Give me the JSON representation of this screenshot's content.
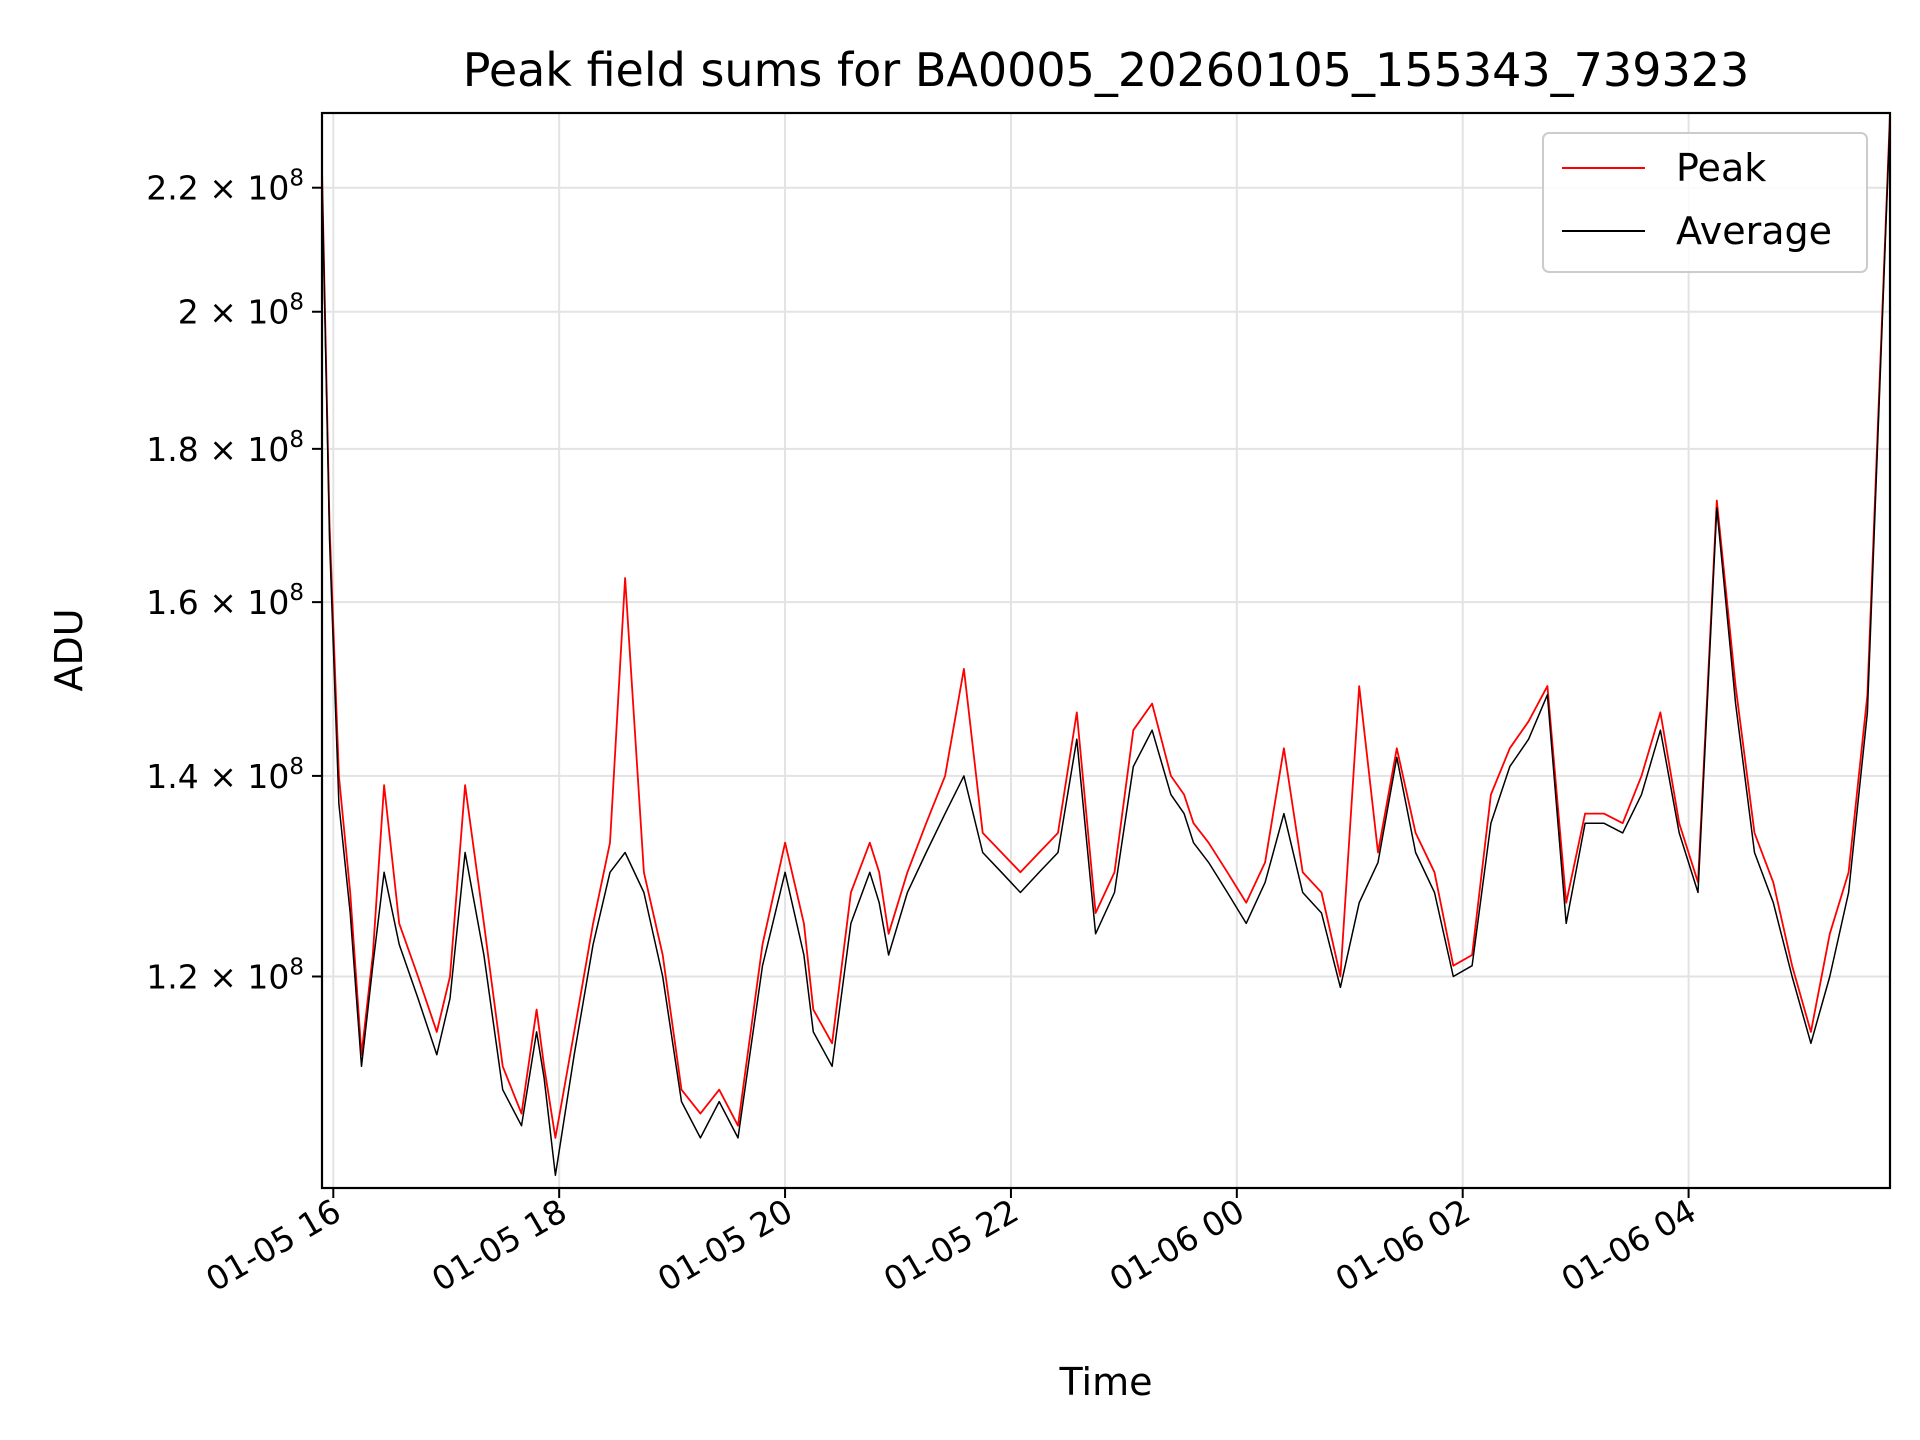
{
  "chart_data": {
    "type": "line",
    "title": "Peak field sums for BA0005_20260105_155343_739323",
    "xlabel": "Time",
    "ylabel": "ADU",
    "y_scale": "log",
    "xlim": [
      "2026-01-05 15:54",
      "2026-01-06 05:47"
    ],
    "ylim": [
      102000000.0,
      233000000.0
    ],
    "grid": true,
    "legend_position": "top-right",
    "x_ticks": [
      "01-05 16",
      "01-05 18",
      "01-05 20",
      "01-05 22",
      "01-06 00",
      "01-06 02",
      "01-06 04"
    ],
    "y_ticks": [
      {
        "value": 120000000.0,
        "mantissa": "1.2",
        "exponent": "8"
      },
      {
        "value": 140000000.0,
        "mantissa": "1.4",
        "exponent": "8"
      },
      {
        "value": 160000000.0,
        "mantissa": "1.6",
        "exponent": "8"
      },
      {
        "value": 180000000.0,
        "mantissa": "1.8",
        "exponent": "8"
      },
      {
        "value": 200000000.0,
        "mantissa": "2",
        "exponent": "8"
      },
      {
        "value": 220000000.0,
        "mantissa": "2.2",
        "exponent": "8"
      }
    ],
    "series": [
      {
        "name": "Peak",
        "color": "#ff0000",
        "x": [
          "2026-01-05 15:54",
          "2026-01-05 15:58",
          "2026-01-05 16:03",
          "2026-01-05 16:09",
          "2026-01-05 16:15",
          "2026-01-05 16:21",
          "2026-01-05 16:27",
          "2026-01-05 16:35",
          "2026-01-05 16:45",
          "2026-01-05 16:55",
          "2026-01-05 17:02",
          "2026-01-05 17:10",
          "2026-01-05 17:20",
          "2026-01-05 17:30",
          "2026-01-05 17:40",
          "2026-01-05 17:48",
          "2026-01-05 17:52",
          "2026-01-05 17:58",
          "2026-01-05 18:08",
          "2026-01-05 18:18",
          "2026-01-05 18:27",
          "2026-01-05 18:35",
          "2026-01-05 18:45",
          "2026-01-05 18:55",
          "2026-01-05 19:05",
          "2026-01-05 19:15",
          "2026-01-05 19:25",
          "2026-01-05 19:35",
          "2026-01-05 19:48",
          "2026-01-05 20:00",
          "2026-01-05 20:10",
          "2026-01-05 20:15",
          "2026-01-05 20:25",
          "2026-01-05 20:35",
          "2026-01-05 20:45",
          "2026-01-05 20:50",
          "2026-01-05 20:55",
          "2026-01-05 21:05",
          "2026-01-05 21:15",
          "2026-01-05 21:25",
          "2026-01-05 21:35",
          "2026-01-05 21:45",
          "2026-01-05 21:55",
          "2026-01-05 22:05",
          "2026-01-05 22:15",
          "2026-01-05 22:25",
          "2026-01-05 22:35",
          "2026-01-05 22:45",
          "2026-01-05 22:55",
          "2026-01-05 23:05",
          "2026-01-05 23:15",
          "2026-01-05 23:25",
          "2026-01-05 23:32",
          "2026-01-05 23:37",
          "2026-01-05 23:45",
          "2026-01-05 23:55",
          "2026-01-06 00:05",
          "2026-01-06 00:15",
          "2026-01-06 00:25",
          "2026-01-06 00:35",
          "2026-01-06 00:45",
          "2026-01-06 00:55",
          "2026-01-06 01:05",
          "2026-01-06 01:15",
          "2026-01-06 01:25",
          "2026-01-06 01:35",
          "2026-01-06 01:45",
          "2026-01-06 01:55",
          "2026-01-06 02:05",
          "2026-01-06 02:15",
          "2026-01-06 02:25",
          "2026-01-06 02:35",
          "2026-01-06 02:45",
          "2026-01-06 02:55",
          "2026-01-06 03:05",
          "2026-01-06 03:15",
          "2026-01-06 03:25",
          "2026-01-06 03:35",
          "2026-01-06 03:45",
          "2026-01-06 03:55",
          "2026-01-06 04:05",
          "2026-01-06 04:15",
          "2026-01-06 04:25",
          "2026-01-06 04:35",
          "2026-01-06 04:45",
          "2026-01-06 04:55",
          "2026-01-06 05:05",
          "2026-01-06 05:15",
          "2026-01-06 05:25",
          "2026-01-06 05:35",
          "2026-01-06 05:47"
        ],
        "y": [
          223000000.0,
          170000000.0,
          140000000.0,
          128000000.0,
          113000000.0,
          122000000.0,
          139000000.0,
          125000000.0,
          120000000.0,
          115000000.0,
          120000000.0,
          139000000.0,
          125000000.0,
          112000000.0,
          108000000.0,
          117000000.0,
          112000000.0,
          106000000.0,
          115000000.0,
          125000000.0,
          133000000.0,
          163000000.0,
          130000000.0,
          122000000.0,
          110000000.0,
          108000000.0,
          110000000.0,
          107000000.0,
          123000000.0,
          133000000.0,
          125000000.0,
          117000000.0,
          114000000.0,
          128000000.0,
          133000000.0,
          130000000.0,
          124000000.0,
          130000000.0,
          135000000.0,
          140000000.0,
          152000000.0,
          134000000.0,
          132000000.0,
          130000000.0,
          132000000.0,
          134000000.0,
          147000000.0,
          126000000.0,
          130000000.0,
          145000000.0,
          148000000.0,
          140000000.0,
          138000000.0,
          135000000.0,
          133000000.0,
          130000000.0,
          127000000.0,
          131000000.0,
          143000000.0,
          130000000.0,
          128000000.0,
          120000000.0,
          150000000.0,
          132000000.0,
          143000000.0,
          134000000.0,
          130000000.0,
          121000000.0,
          122000000.0,
          138000000.0,
          143000000.0,
          146000000.0,
          150000000.0,
          127000000.0,
          136000000.0,
          136000000.0,
          135000000.0,
          140000000.0,
          147000000.0,
          135000000.0,
          129000000.0,
          173000000.0,
          150000000.0,
          134000000.0,
          129000000.0,
          121000000.0,
          115000000.0,
          124000000.0,
          130000000.0,
          149000000.0,
          233000000.0
        ]
      },
      {
        "name": "Average",
        "color": "#000000",
        "x": [
          "2026-01-05 15:54",
          "2026-01-05 15:58",
          "2026-01-05 16:03",
          "2026-01-05 16:09",
          "2026-01-05 16:15",
          "2026-01-05 16:21",
          "2026-01-05 16:27",
          "2026-01-05 16:35",
          "2026-01-05 16:45",
          "2026-01-05 16:55",
          "2026-01-05 17:02",
          "2026-01-05 17:10",
          "2026-01-05 17:20",
          "2026-01-05 17:30",
          "2026-01-05 17:40",
          "2026-01-05 17:48",
          "2026-01-05 17:52",
          "2026-01-05 17:58",
          "2026-01-05 18:08",
          "2026-01-05 18:18",
          "2026-01-05 18:27",
          "2026-01-05 18:35",
          "2026-01-05 18:45",
          "2026-01-05 18:55",
          "2026-01-05 19:05",
          "2026-01-05 19:15",
          "2026-01-05 19:25",
          "2026-01-05 19:35",
          "2026-01-05 19:48",
          "2026-01-05 20:00",
          "2026-01-05 20:10",
          "2026-01-05 20:15",
          "2026-01-05 20:25",
          "2026-01-05 20:35",
          "2026-01-05 20:45",
          "2026-01-05 20:50",
          "2026-01-05 20:55",
          "2026-01-05 21:05",
          "2026-01-05 21:15",
          "2026-01-05 21:25",
          "2026-01-05 21:35",
          "2026-01-05 21:45",
          "2026-01-05 21:55",
          "2026-01-05 22:05",
          "2026-01-05 22:15",
          "2026-01-05 22:25",
          "2026-01-05 22:35",
          "2026-01-05 22:45",
          "2026-01-05 22:55",
          "2026-01-05 23:05",
          "2026-01-05 23:15",
          "2026-01-05 23:25",
          "2026-01-05 23:32",
          "2026-01-05 23:37",
          "2026-01-05 23:45",
          "2026-01-05 23:55",
          "2026-01-06 00:05",
          "2026-01-06 00:15",
          "2026-01-06 00:25",
          "2026-01-06 00:35",
          "2026-01-06 00:45",
          "2026-01-06 00:55",
          "2026-01-06 01:05",
          "2026-01-06 01:15",
          "2026-01-06 01:25",
          "2026-01-06 01:35",
          "2026-01-06 01:45",
          "2026-01-06 01:55",
          "2026-01-06 02:05",
          "2026-01-06 02:15",
          "2026-01-06 02:25",
          "2026-01-06 02:35",
          "2026-01-06 02:45",
          "2026-01-06 02:55",
          "2026-01-06 03:05",
          "2026-01-06 03:15",
          "2026-01-06 03:25",
          "2026-01-06 03:35",
          "2026-01-06 03:45",
          "2026-01-06 03:55",
          "2026-01-06 04:05",
          "2026-01-06 04:15",
          "2026-01-06 04:25",
          "2026-01-06 04:35",
          "2026-01-06 04:45",
          "2026-01-06 04:55",
          "2026-01-06 05:05",
          "2026-01-06 05:15",
          "2026-01-06 05:25",
          "2026-01-06 05:35",
          "2026-01-06 05:47"
        ],
        "y": [
          222000000.0,
          168000000.0,
          137000000.0,
          126000000.0,
          112000000.0,
          121000000.0,
          130000000.0,
          123000000.0,
          118000000.0,
          113000000.0,
          118000000.0,
          132000000.0,
          122000000.0,
          110000000.0,
          107000000.0,
          115000000.0,
          111000000.0,
          103000000.0,
          113000000.0,
          123000000.0,
          130000000.0,
          132000000.0,
          128000000.0,
          120000000.0,
          109000000.0,
          106000000.0,
          109000000.0,
          106000000.0,
          121000000.0,
          130000000.0,
          122000000.0,
          115000000.0,
          112000000.0,
          125000000.0,
          130000000.0,
          127000000.0,
          122000000.0,
          128000000.0,
          132000000.0,
          136000000.0,
          140000000.0,
          132000000.0,
          130000000.0,
          128000000.0,
          130000000.0,
          132000000.0,
          144000000.0,
          124000000.0,
          128000000.0,
          141000000.0,
          145000000.0,
          138000000.0,
          136000000.0,
          133000000.0,
          131000000.0,
          128000000.0,
          125000000.0,
          129000000.0,
          136000000.0,
          128000000.0,
          126000000.0,
          119000000.0,
          127000000.0,
          131000000.0,
          142000000.0,
          132000000.0,
          128000000.0,
          120000000.0,
          121000000.0,
          135000000.0,
          141000000.0,
          144000000.0,
          149000000.0,
          125000000.0,
          135000000.0,
          135000000.0,
          134000000.0,
          138000000.0,
          145000000.0,
          134000000.0,
          128000000.0,
          172000000.0,
          148000000.0,
          132000000.0,
          127000000.0,
          120000000.0,
          114000000.0,
          120000000.0,
          128000000.0,
          147000000.0,
          232000000.0
        ]
      }
    ]
  }
}
